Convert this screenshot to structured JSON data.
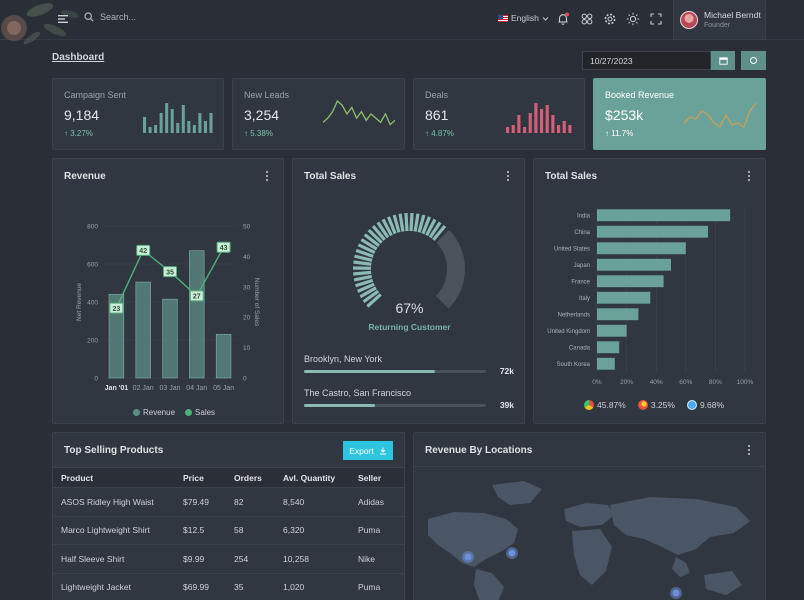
{
  "header": {
    "search_placeholder": "Search...",
    "language": "English",
    "user": {
      "name": "Michael Berndt",
      "role": "Founder"
    }
  },
  "breadcrumb": "Dashboard",
  "date_value": "10/27/2023",
  "stats": [
    {
      "title": "Campaign Sent",
      "value": "9,184",
      "change": "3.27%",
      "spark_type": "bars",
      "color": "#6aa199",
      "spark": [
        8,
        3,
        4,
        10,
        15,
        12,
        5,
        14,
        6,
        4,
        10,
        6,
        10
      ]
    },
    {
      "title": "New Leads",
      "value": "3,254",
      "change": "5.38%",
      "spark_type": "line",
      "color": "#8ec06c",
      "spark": [
        4,
        6,
        9,
        14,
        12,
        8,
        11,
        6,
        9,
        5,
        8,
        6,
        4,
        8,
        3,
        5
      ]
    },
    {
      "title": "Deals",
      "value": "861",
      "change": "4.87%",
      "spark_type": "bars",
      "color": "#d45d78",
      "spark": [
        3,
        4,
        9,
        3,
        10,
        15,
        12,
        14,
        9,
        4,
        6,
        4
      ]
    },
    {
      "title": "Booked Revenue",
      "value": "$253k",
      "change": "11.7%",
      "spark_type": "line",
      "color": "#c4a05a",
      "spark": [
        4,
        7,
        6,
        10,
        8,
        4,
        2,
        8,
        3,
        4,
        2,
        10,
        14
      ]
    }
  ],
  "revenue_panel": {
    "title": "Revenue",
    "chart_data": {
      "type": "bar",
      "categories": [
        "Jan '01",
        "02 Jan",
        "03 Jan",
        "04 Jan",
        "05 Jan"
      ],
      "series": [
        {
          "name": "Revenue",
          "type": "bar",
          "axis": "left",
          "color": "#5e8f86",
          "values": [
            440,
            505,
            415,
            670,
            230
          ]
        },
        {
          "name": "Sales",
          "type": "line",
          "axis": "right",
          "color": "#4fb07a",
          "values": [
            23,
            42,
            35,
            27,
            43
          ]
        }
      ],
      "ylabel": "Net Revenue",
      "y2label": "Number of Sales",
      "ylim": [
        0,
        800
      ],
      "y2lim": [
        0,
        50
      ],
      "yticks": [
        "0",
        "200",
        "400",
        "600",
        "800"
      ],
      "y2ticks": [
        "0",
        "10",
        "20",
        "30",
        "40",
        "50"
      ]
    },
    "legend": [
      "Revenue",
      "Sales"
    ]
  },
  "total_sales_gauge": {
    "title": "Total Sales",
    "chart_data": {
      "type": "pie",
      "value": 67,
      "label": "67%"
    },
    "subtitle": "Returning Customer",
    "locations": [
      {
        "name": "Brooklyn, New York",
        "value": "72k",
        "fraction": 0.72
      },
      {
        "name": "The Castro, San Francisco",
        "value": "39k",
        "fraction": 0.39
      }
    ]
  },
  "total_sales_bars": {
    "title": "Total Sales",
    "chart_data": {
      "type": "bar",
      "orientation": "horizontal",
      "categories": [
        "India",
        "China",
        "United States",
        "Japan",
        "France",
        "Italy",
        "Netherlands",
        "United Kingdom",
        "Canada",
        "South Korea"
      ],
      "values": [
        90,
        75,
        60,
        50,
        45,
        36,
        28,
        20,
        15,
        12
      ],
      "xticks": [
        "0%",
        "20%",
        "40%",
        "60%",
        "80%",
        "100%"
      ],
      "xlim": [
        0,
        100
      ],
      "color": "#6aa199"
    },
    "browsers": [
      {
        "name": "chrome-icon",
        "value": "45.87%"
      },
      {
        "name": "firefox-icon",
        "value": "3.25%"
      },
      {
        "name": "safari-icon",
        "value": "9.68%"
      }
    ]
  },
  "top_products": {
    "title": "Top Selling Products",
    "export_label": "Export",
    "columns": [
      "Product",
      "Price",
      "Orders",
      "Avl. Quantity",
      "Seller"
    ],
    "rows": [
      [
        "ASOS Ridley High Waist",
        "$79.49",
        "82",
        "8,540",
        "Adidas"
      ],
      [
        "Marco Lightweight Shirt",
        "$12.5",
        "58",
        "6,320",
        "Puma"
      ],
      [
        "Half Sleeve Shirt",
        "$9.99",
        "254",
        "10,258",
        "Nike"
      ],
      [
        "Lightweight Jacket",
        "$69.99",
        "35",
        "1,020",
        "Puma"
      ]
    ]
  },
  "revenue_locations": {
    "title": "Revenue By Locations"
  }
}
